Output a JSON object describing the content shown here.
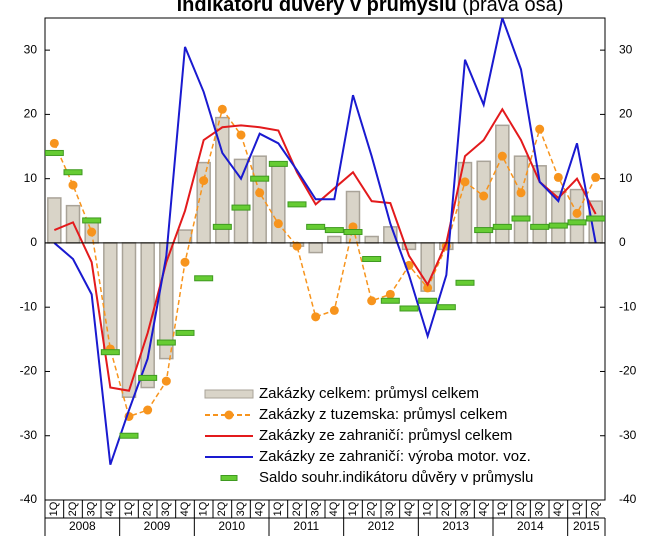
{
  "chart_data": {
    "type": "combo",
    "title": "indikátoru důvěry v průmyslu",
    "title_note": "(pravá osa)",
    "categories": [
      "1Q",
      "2Q",
      "3Q",
      "4Q",
      "1Q",
      "2Q",
      "3Q",
      "4Q",
      "1Q",
      "2Q",
      "3Q",
      "4Q",
      "1Q",
      "2Q",
      "3Q",
      "4Q",
      "1Q",
      "2Q",
      "3Q",
      "4Q",
      "1Q",
      "2Q",
      "3Q",
      "4Q",
      "1Q",
      "2Q",
      "3Q",
      "4Q",
      "1Q",
      "2Q"
    ],
    "year_groups": [
      "2008",
      "2009",
      "2010",
      "2011",
      "2012",
      "2013",
      "2014",
      "2015"
    ],
    "ylim": [
      -40,
      35
    ],
    "yticks": [
      -40,
      -30,
      -20,
      -10,
      0,
      10,
      20,
      30
    ],
    "y2lim": [
      -40,
      35
    ],
    "y2ticks": [
      -40,
      -30,
      -20,
      -10,
      0,
      10,
      20,
      30
    ],
    "legend": "lower right",
    "series": [
      {
        "name": "Zakázky celkem: průmysl celkem",
        "type": "bar",
        "color": "#d9d4c8",
        "values": [
          7,
          5.8,
          3.5,
          -17,
          -24,
          -22.5,
          -18,
          2,
          12.5,
          19.5,
          13,
          13.5,
          12,
          -0.5,
          -1.5,
          1,
          8,
          1,
          2.5,
          -1,
          -7.5,
          -1,
          12.5,
          12.7,
          18.3,
          13.5,
          12,
          8,
          8.3,
          6.5
        ]
      },
      {
        "name": "Zakázky z tuzemska: průmysl celkem",
        "type": "line",
        "dashed": true,
        "marker": "circle",
        "color": "#f7941d",
        "values": [
          15.5,
          9,
          1.7,
          -16.5,
          -27,
          -26,
          -21.5,
          -3,
          9.7,
          20.8,
          16.8,
          7.8,
          3,
          -0.5,
          -11.5,
          -10.5,
          2.5,
          -9,
          -8,
          -3.5,
          -7,
          -0.5,
          9.5,
          7.3,
          13.5,
          7.8,
          17.7,
          10.2,
          4.6,
          10.2
        ]
      },
      {
        "name": "Zakázky ze zahraničí:  průmysl celkem",
        "type": "line",
        "color": "#e31a1c",
        "values": [
          2,
          3.2,
          -3,
          -22.5,
          -23,
          -14,
          -3,
          5,
          16,
          18,
          18.3,
          18,
          17.5,
          11,
          6,
          8.5,
          11,
          6.5,
          6.2,
          -2,
          -6.5,
          0,
          13.5,
          16,
          20.8,
          16,
          9.5,
          7,
          10,
          4.5
        ]
      },
      {
        "name": "Zakázky ze zahraničí:  výroba motor. voz.",
        "type": "line",
        "color": "#1a1ad0",
        "values": [
          0,
          -2.5,
          -8,
          -34.5,
          -26,
          -18,
          -2,
          30.5,
          23.5,
          14,
          10,
          17,
          15.5,
          11.3,
          6.8,
          6.8,
          23,
          13.5,
          3,
          -5,
          -14.5,
          -5,
          28.5,
          21.5,
          35,
          27,
          9.5,
          6.5,
          15.5,
          0
        ]
      },
      {
        "name": "Saldo souhr.indikátoru důvěry v průmyslu",
        "type": "dash",
        "axis": "y2",
        "color": "#66cc33",
        "values": [
          14,
          11,
          3.5,
          -17,
          -30,
          -21,
          -15.5,
          -14,
          -5.5,
          2.5,
          5.5,
          10,
          12.3,
          6,
          2.5,
          2,
          1.7,
          -2.5,
          -9,
          -10.2,
          -9,
          -10,
          -6.2,
          2,
          2.5,
          3.8,
          2.5,
          2.7,
          3.2,
          3.8
        ]
      }
    ]
  }
}
